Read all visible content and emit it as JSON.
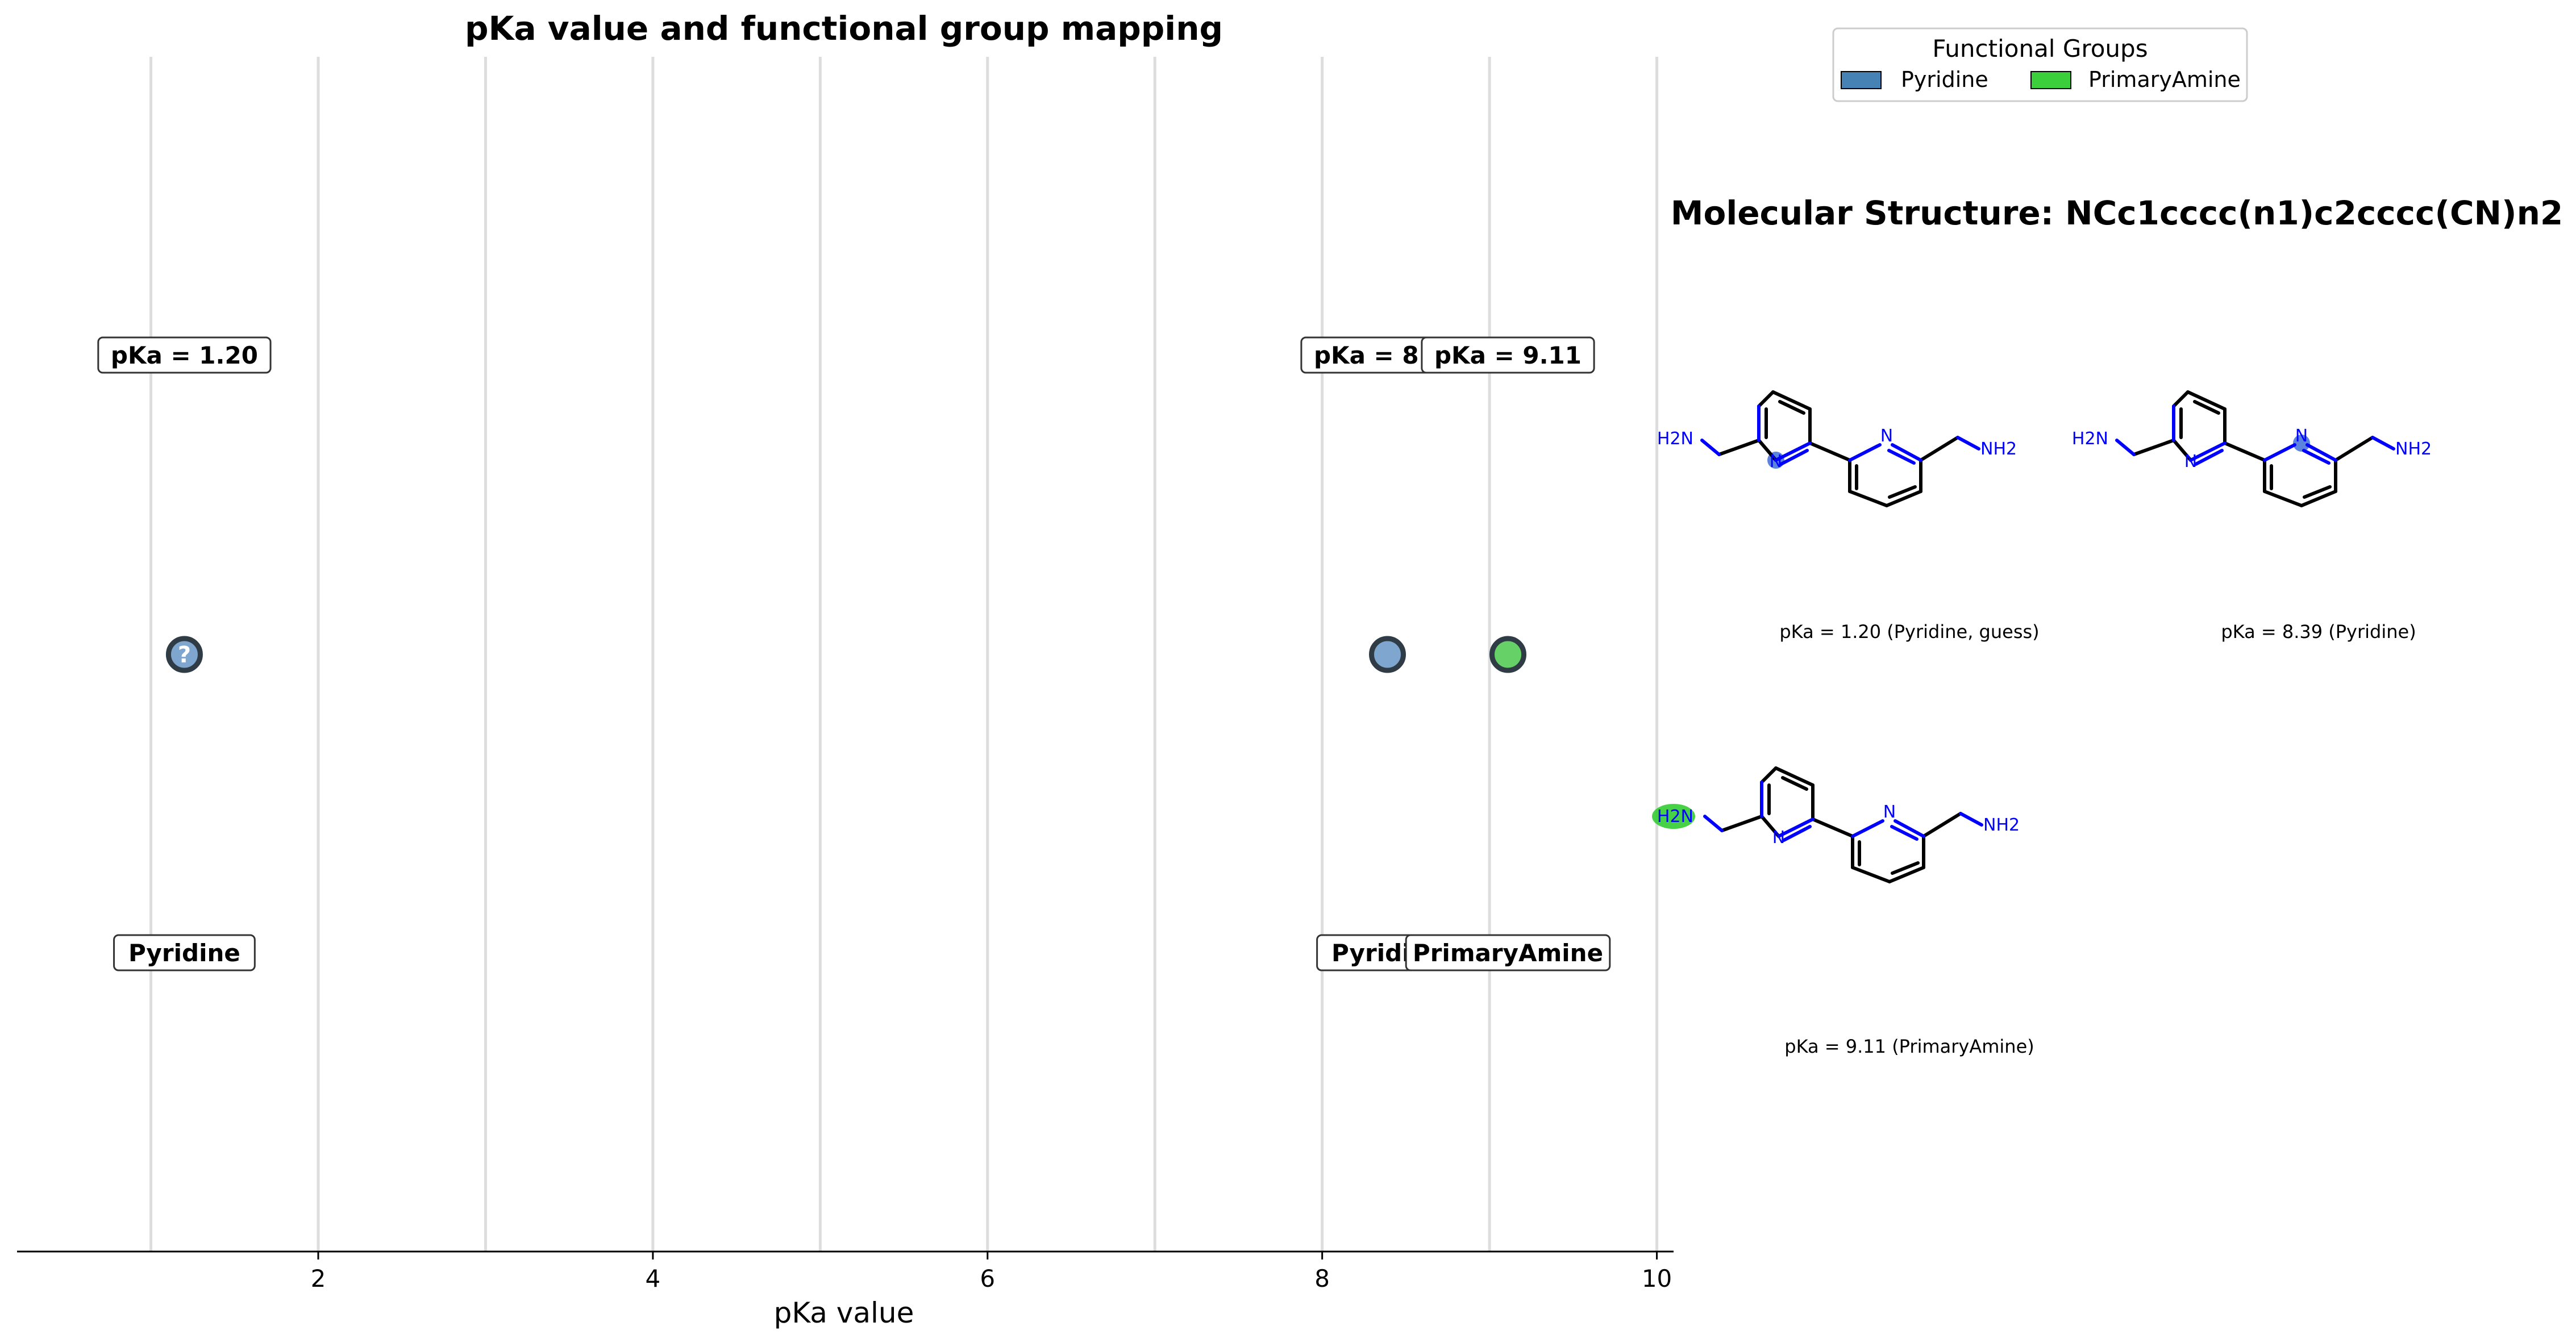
{
  "chart_data": {
    "type": "scatter",
    "title": "pKa value and functional group mapping",
    "xlabel": "pKa value",
    "ylabel": "",
    "xlim": [
      0.2,
      10.1
    ],
    "xticks": [
      2,
      4,
      6,
      8,
      10
    ],
    "xtick_labels": [
      "2",
      "4",
      "6",
      "8",
      "10"
    ],
    "gridlines_x": [
      1,
      2,
      3,
      4,
      5,
      6,
      7,
      8,
      9,
      10
    ],
    "grid": true,
    "points": [
      {
        "pka": 1.2,
        "group": "Pyridine",
        "pka_label": "pKa = 1.20",
        "group_label": "Pyridine",
        "color": "#7ea6cf",
        "marker_text": "?"
      },
      {
        "pka": 8.39,
        "group": "Pyridine",
        "pka_label": "pKa = 8.39",
        "group_label": "Pyridine",
        "color": "#7ea6cf",
        "marker_text": ""
      },
      {
        "pka": 9.11,
        "group": "PrimaryAmine",
        "pka_label": "pKa = 9.11",
        "group_label": "PrimaryAmine",
        "color": "#66d166",
        "marker_text": ""
      }
    ]
  },
  "legend": {
    "title": "Functional Groups",
    "placement": "top-right",
    "entries": [
      {
        "label": "Pyridine",
        "color": "#4682b4"
      },
      {
        "label": "PrimaryAmine",
        "color": "#3ccf3c"
      }
    ]
  },
  "molecule_panel": {
    "title": "Molecular Structure: NCc1cccc(n1)c2cccc(CN)n2",
    "structures": [
      {
        "caption": "pKa = 1.20 (Pyridine, guess)",
        "highlight": "left-pyridine-n",
        "highlight_color": "#3f6fd8"
      },
      {
        "caption": "pKa = 8.39 (Pyridine)",
        "highlight": "right-pyridine-n",
        "highlight_color": "#3f6fd8"
      },
      {
        "caption": "pKa = 9.11 (PrimaryAmine)",
        "highlight": "left-amine",
        "highlight_color": "#33cc33"
      }
    ],
    "atom_labels": {
      "n": "N",
      "h2n": "H2N",
      "nh2": "NH2"
    }
  }
}
